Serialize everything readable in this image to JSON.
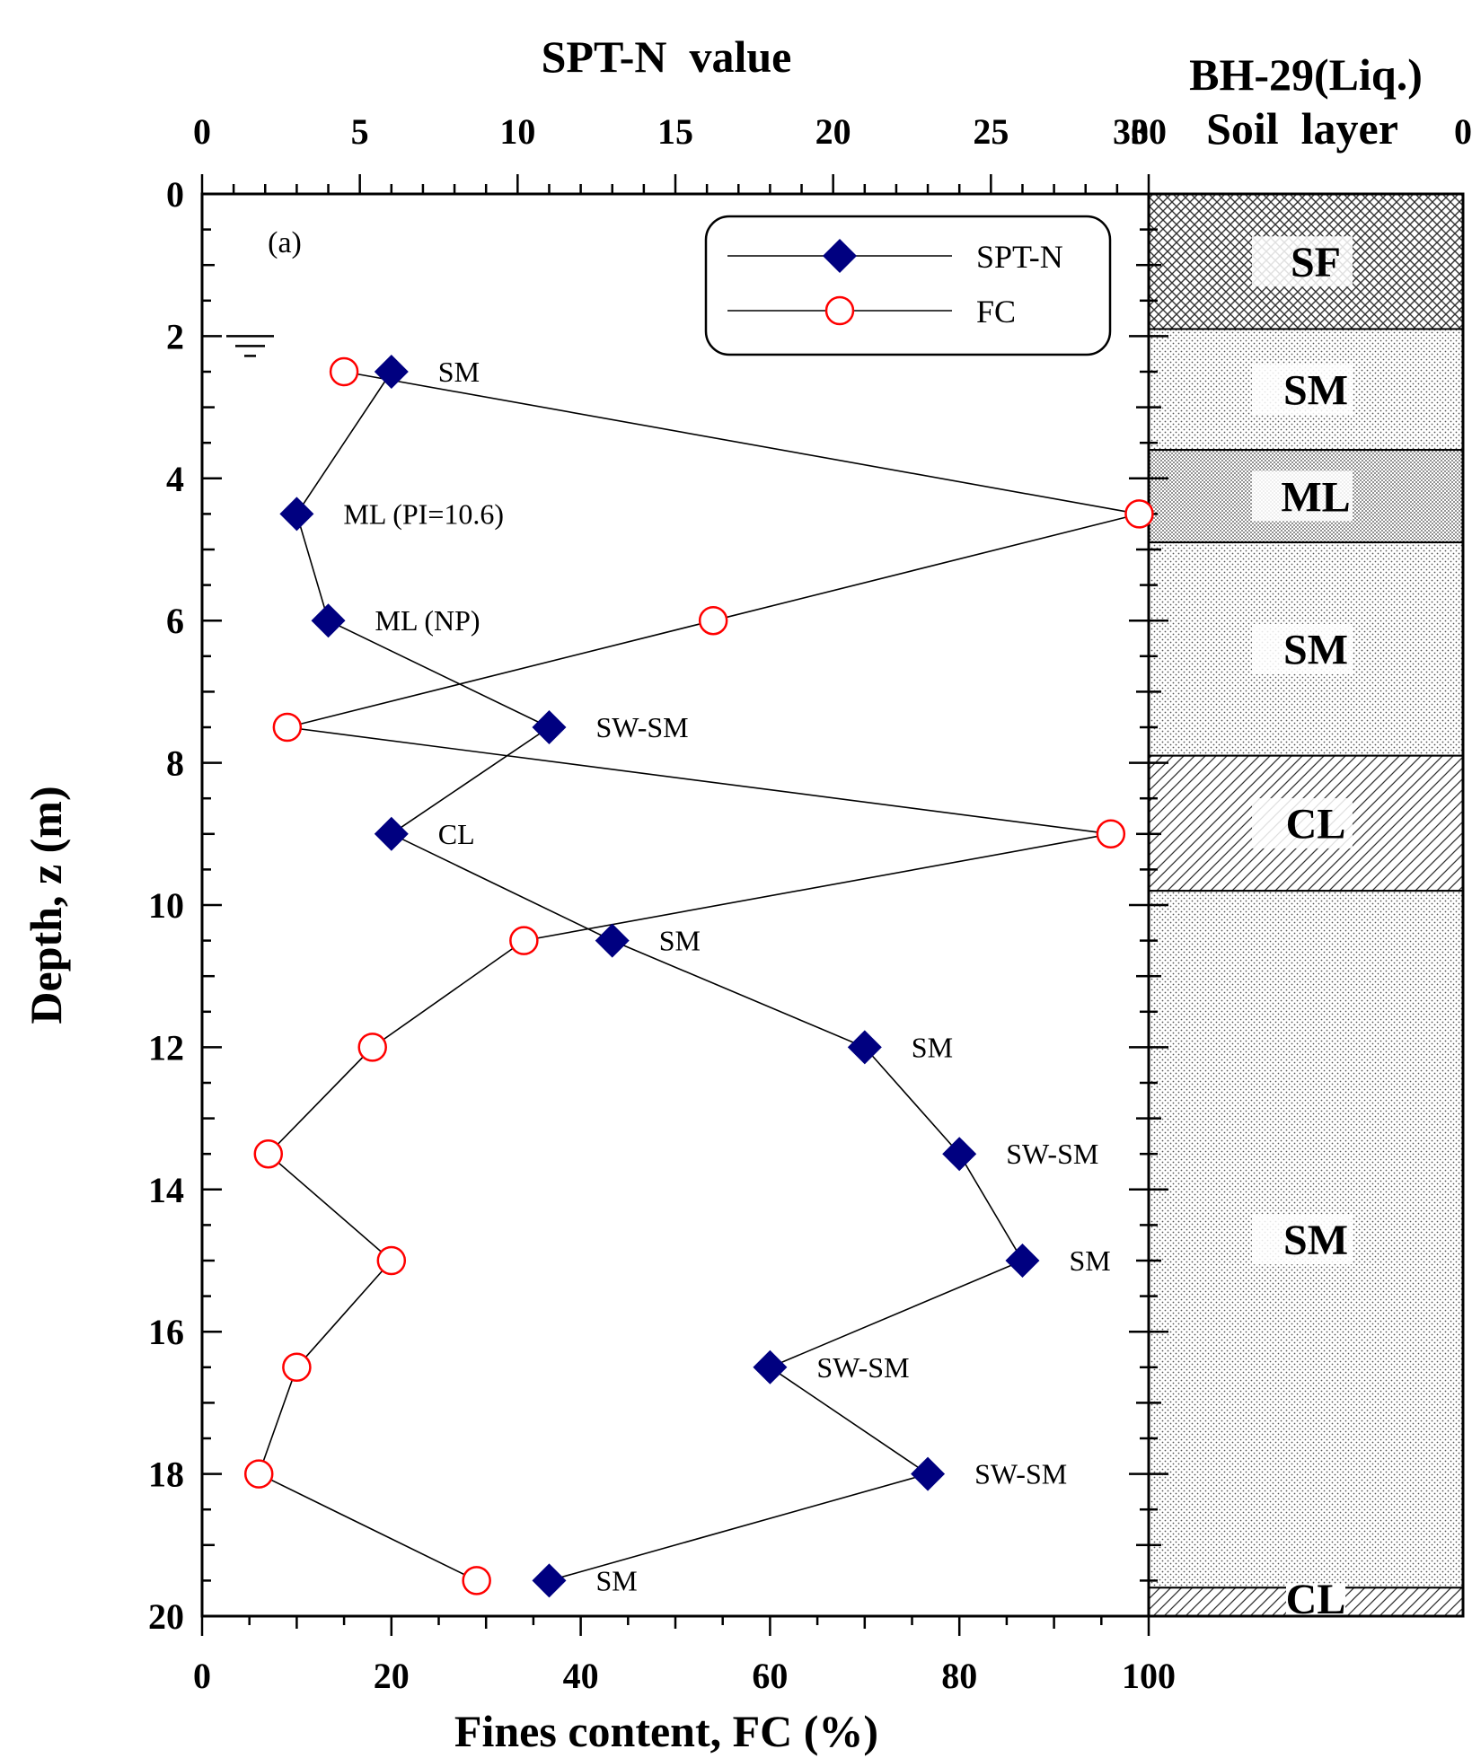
{
  "chart_data": {
    "type": "line",
    "panel_label": "(a)",
    "title_top": "SPT-N  value",
    "top_axis": {
      "label": "SPT-N  value",
      "range": [
        0,
        30
      ],
      "ticks": [
        "0",
        "5",
        "10",
        "15",
        "20",
        "25",
        "30"
      ]
    },
    "bottom_axis": {
      "label": "Fines content, FC (%)",
      "range": [
        0,
        100
      ],
      "ticks": [
        "0",
        "20",
        "40",
        "60",
        "80",
        "100"
      ]
    },
    "y_axis": {
      "label": "Depth, z (m)",
      "range": [
        0,
        20
      ],
      "inverted": true,
      "ticks": [
        "0",
        "2",
        "4",
        "6",
        "8",
        "10",
        "12",
        "14",
        "16",
        "18",
        "20"
      ]
    },
    "legend": {
      "position": "top-right",
      "entries": [
        "SPT-N",
        "FC"
      ]
    },
    "water_table_depth": 2.0,
    "series": [
      {
        "name": "SPT-N",
        "axis": "top",
        "marker": "diamond",
        "color": "#000080",
        "depth": [
          2.5,
          4.5,
          6.0,
          7.5,
          9.0,
          10.5,
          12.0,
          13.5,
          15.0,
          16.5,
          18.0,
          19.5
        ],
        "values": [
          6,
          3,
          4,
          11,
          6,
          13,
          21,
          24,
          26,
          18,
          23,
          11
        ]
      },
      {
        "name": "FC",
        "axis": "bottom",
        "marker": "open-circle",
        "color": "#ff0000",
        "depth": [
          2.5,
          4.5,
          6.0,
          7.5,
          9.0,
          10.5,
          12.0,
          13.5,
          15.0,
          16.5,
          18.0,
          19.5
        ],
        "values": [
          15,
          99,
          54,
          9,
          96,
          34,
          18,
          7,
          20,
          10,
          6,
          29
        ]
      }
    ],
    "point_labels": [
      "SM",
      "ML (PI=10.6)",
      "ML (NP)",
      "SW-SM",
      "CL",
      "SM",
      "SM",
      "SW-SM",
      "SM",
      "SW-SM",
      "SW-SM",
      "SM"
    ],
    "soil_column": {
      "title": "BH-29(Liq.)",
      "subtitle": "Soil  layer",
      "left_tick": "30",
      "right_tick": "0",
      "layers": [
        {
          "name": "SF",
          "top": 0.0,
          "bottom": 1.9,
          "pattern": "crosshatch"
        },
        {
          "name": "SM",
          "top": 1.9,
          "bottom": 3.6,
          "pattern": "dots"
        },
        {
          "name": "ML",
          "top": 3.6,
          "bottom": 4.9,
          "pattern": "dense-dots"
        },
        {
          "name": "SM",
          "top": 4.9,
          "bottom": 7.9,
          "pattern": "dots"
        },
        {
          "name": "CL",
          "top": 7.9,
          "bottom": 9.8,
          "pattern": "diagonal"
        },
        {
          "name": "SM",
          "top": 9.8,
          "bottom": 19.6,
          "pattern": "dots"
        },
        {
          "name": "CL",
          "top": 19.6,
          "bottom": 20.0,
          "pattern": "diagonal"
        }
      ]
    }
  }
}
